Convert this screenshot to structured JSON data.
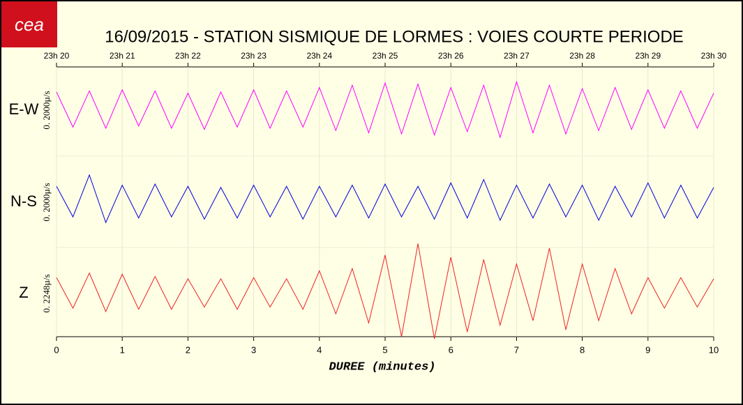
{
  "chart_data": {
    "type": "seismogram",
    "logo": "cea",
    "title": "16/09/2015  -  STATION SISMIQUE DE LORMES : VOIES COURTE PERIODE",
    "xlabel": "DUREE (minutes)",
    "xlim": [
      0,
      10
    ],
    "xticks": [
      0,
      1,
      2,
      3,
      4,
      5,
      6,
      7,
      8,
      9,
      10
    ],
    "top_xticks": [
      {
        "value": 0,
        "label": "23h 20"
      },
      {
        "value": 1,
        "label": "23h 21"
      },
      {
        "value": 2,
        "label": "23h 22"
      },
      {
        "value": 3,
        "label": "23h 23"
      },
      {
        "value": 4,
        "label": "23h 24"
      },
      {
        "value": 5,
        "label": "23h 25"
      },
      {
        "value": 6,
        "label": "23h 26"
      },
      {
        "value": 7,
        "label": "23h 27"
      },
      {
        "value": 8,
        "label": "23h 28"
      },
      {
        "value": 9,
        "label": "23h 29"
      },
      {
        "value": 10,
        "label": "23h 30"
      }
    ],
    "x": [
      0,
      0.25,
      0.5,
      0.75,
      1,
      1.25,
      1.5,
      1.75,
      2,
      2.25,
      2.5,
      2.75,
      3,
      3.25,
      3.5,
      3.75,
      4,
      4.25,
      4.5,
      4.75,
      5,
      5.25,
      5.5,
      5.75,
      6,
      6.25,
      6.5,
      6.75,
      7,
      7.25,
      7.5,
      7.75,
      8,
      8.25,
      8.5,
      8.75,
      9,
      9.25,
      9.5,
      9.75,
      10
    ],
    "series": [
      {
        "name": "E-W",
        "color": "#ff00ff",
        "scale_label": "0. 2000µ/s",
        "ylim": [
          -2000,
          2000
        ],
        "values": [
          800,
          -750,
          850,
          -800,
          900,
          -700,
          850,
          -800,
          750,
          -850,
          800,
          -750,
          900,
          -800,
          850,
          -750,
          1000,
          -900,
          1100,
          -1000,
          1200,
          -1050,
          1150,
          -1100,
          1000,
          -950,
          1100,
          -1200,
          1250,
          -1000,
          1100,
          -1050,
          950,
          -900,
          1000,
          -850,
          900,
          -800,
          850,
          -800,
          750
        ]
      },
      {
        "name": "N-S",
        "color": "#0000dd",
        "scale_label": "0. 2000µ/s",
        "ylim": [
          -2000,
          2000
        ],
        "values": [
          700,
          -650,
          1200,
          -900,
          750,
          -700,
          800,
          -650,
          700,
          -750,
          650,
          -700,
          750,
          -650,
          700,
          -750,
          700,
          -650,
          750,
          -700,
          800,
          -650,
          700,
          -750,
          850,
          -700,
          1000,
          -800,
          750,
          -700,
          800,
          -650,
          750,
          -800,
          700,
          -650,
          850,
          -700,
          750,
          -700,
          650
        ]
      },
      {
        "name": "Z",
        "color": "#ee2222",
        "scale_label": "0. 2248µ/s",
        "ylim": [
          -2000,
          2000
        ],
        "values": [
          700,
          -650,
          900,
          -800,
          850,
          -700,
          750,
          -700,
          650,
          -600,
          650,
          -700,
          700,
          -600,
          650,
          -700,
          1000,
          -900,
          1100,
          -1300,
          1700,
          -1900,
          2200,
          -2000,
          1600,
          -1700,
          1500,
          -1400,
          1300,
          -1200,
          2000,
          -1600,
          1300,
          -1200,
          1100,
          -900,
          700,
          -650,
          700,
          -600,
          650
        ]
      }
    ]
  }
}
